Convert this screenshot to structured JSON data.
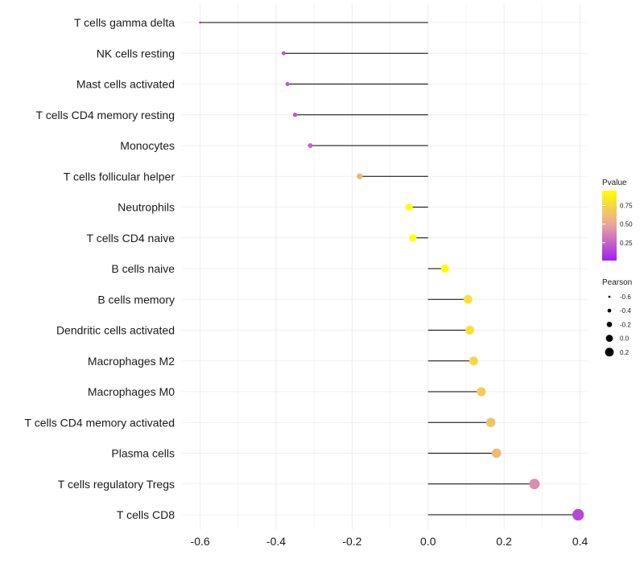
{
  "chart_data": {
    "type": "lollipop",
    "categories": [
      "T cells gamma delta",
      "NK cells resting",
      "Mast cells activated",
      "T cells CD4 memory resting",
      "Monocytes",
      "T cells follicular helper",
      "Neutrophils",
      "T cells CD4 naive",
      "B cells naive",
      "B cells memory",
      "Dendritic cells activated",
      "Macrophages M2",
      "Macrophages M0",
      "T cells CD4 memory activated",
      "Plasma cells",
      "T cells regulatory  Tregs ",
      "T cells CD8"
    ],
    "pearson": [
      -0.6,
      -0.38,
      -0.37,
      -0.35,
      -0.31,
      -0.18,
      -0.05,
      -0.04,
      0.045,
      0.105,
      0.11,
      0.12,
      0.14,
      0.165,
      0.18,
      0.28,
      0.395
    ],
    "pvalue": [
      0.01,
      0.2,
      0.2,
      0.2,
      0.25,
      0.6,
      0.95,
      0.95,
      0.95,
      0.8,
      0.8,
      0.75,
      0.7,
      0.65,
      0.6,
      0.4,
      0.15
    ],
    "xlim": [
      -0.65,
      0.42
    ],
    "x_ticks": [
      -0.6,
      -0.4,
      -0.2,
      0.0,
      0.2,
      0.4
    ],
    "x_tick_labels": [
      "-0.6",
      "-0.4",
      "-0.2",
      "0.0",
      "0.2",
      "0.4"
    ],
    "grid": true,
    "legend_color": {
      "title": "Pvalue",
      "ticks": [
        0.25,
        0.5,
        0.75
      ],
      "tick_labels": [
        "0.25",
        "0.50",
        "0.75"
      ],
      "range": [
        0.01,
        0.95
      ],
      "low_color": "#a020f0",
      "mid_color": "#e8a2a0",
      "high_color": "#ffff00"
    },
    "legend_size": {
      "title": "Pearson",
      "values": [
        -0.6,
        -0.4,
        -0.2,
        0.0,
        0.2
      ],
      "labels": [
        "-0.6",
        "-0.4",
        "-0.2",
        "0.0",
        "0.2"
      ]
    },
    "stem_color": "#000000",
    "grid_color": "#ebebeb"
  }
}
